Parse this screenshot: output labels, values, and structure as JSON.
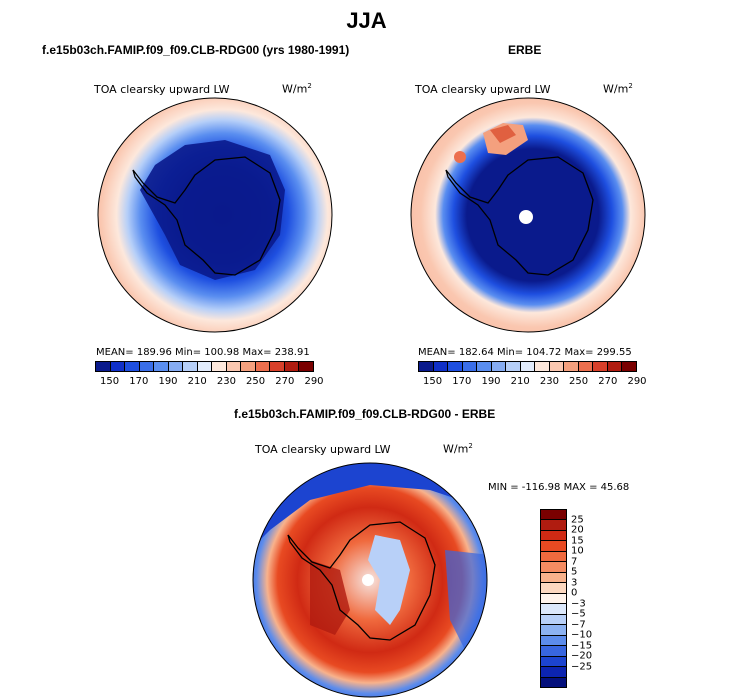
{
  "title": "JJA",
  "panels": [
    {
      "title": "f.e15b03ch.FAMIP.f09_f09.CLB-RDG00 (yrs 1980-1991)",
      "subtitle": "TOA clearsky upward LW",
      "units_base": "W/m",
      "units_exp": "2",
      "stats": "MEAN= 189.96   Min= 100.98   Max= 238.91",
      "mean": 189.96,
      "min": 100.98,
      "max": 238.91
    },
    {
      "title": "ERBE",
      "subtitle": "TOA clearsky upward LW",
      "units_base": "W/m",
      "units_exp": "2",
      "stats": "MEAN= 182.64   Min= 104.72   Max= 299.55",
      "mean": 182.64,
      "min": 104.72,
      "max": 299.55
    },
    {
      "title": "f.e15b03ch.FAMIP.f09_f09.CLB-RDG00 - ERBE",
      "subtitle": "TOA clearsky upward LW",
      "units_base": "W/m",
      "units_exp": "2",
      "stats": "MIN = -116.98 MAX =   45.68",
      "min": -116.98,
      "max": 45.68
    }
  ],
  "abs_colorbar": {
    "colors": [
      "#0a1a8c",
      "#1030c8",
      "#1e4fe0",
      "#3a6ee8",
      "#5a8ef0",
      "#86acf2",
      "#b6cff8",
      "#e2ecfc",
      "#fde8dc",
      "#fac7b0",
      "#f4a07e",
      "#ec6f4e",
      "#d8402a",
      "#b01c10",
      "#7a0000"
    ],
    "labels": [
      "150",
      "170",
      "190",
      "210",
      "230",
      "250",
      "270",
      "290"
    ]
  },
  "diff_colorbar": {
    "colors": [
      "#7a0000",
      "#b01c10",
      "#d02a14",
      "#e84a22",
      "#f06a3e",
      "#f48c62",
      "#f8b28c",
      "#fcd8c0",
      "#fff4ec",
      "#dce8fb",
      "#b8d0f8",
      "#8cb2f2",
      "#5c8cec",
      "#3866e0",
      "#1c44d0",
      "#0c24b0",
      "#04107c"
    ],
    "labels": [
      "25",
      "20",
      "15",
      "10",
      "7",
      "5",
      "3",
      "0",
      "−3",
      "−5",
      "−7",
      "−10",
      "−15",
      "−20",
      "−25"
    ]
  }
}
